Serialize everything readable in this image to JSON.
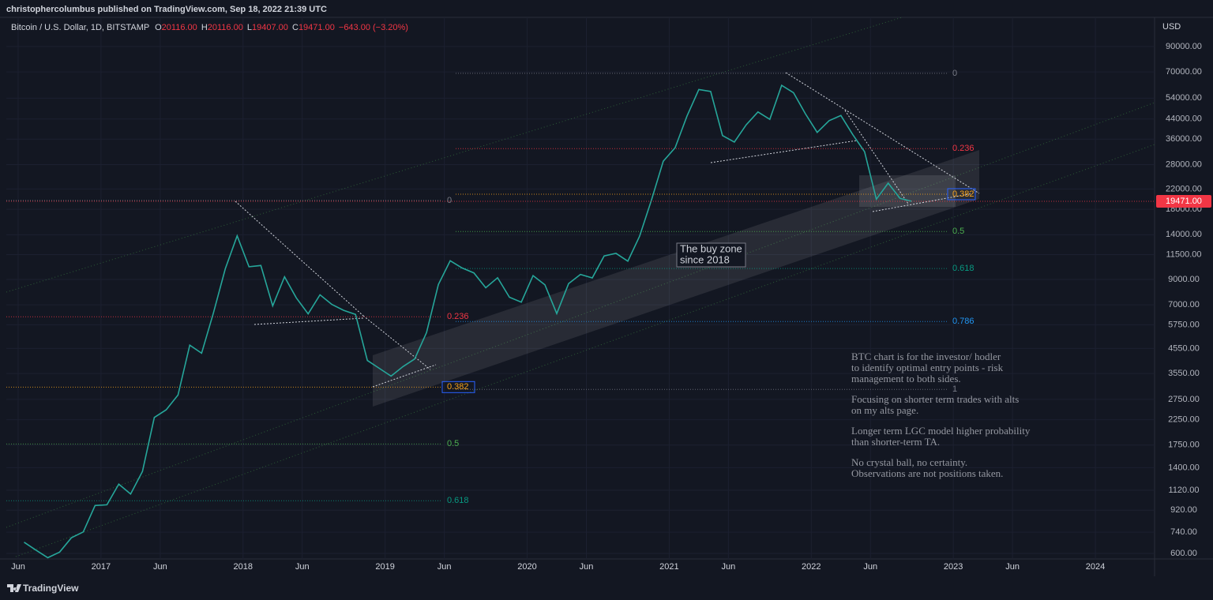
{
  "chart_data": {
    "type": "line",
    "published": "christophercolumbus published on TradingView.com, Sep 18, 2022 21:39 UTC",
    "ohlc": [
      [
        "O",
        "20116.00"
      ],
      [
        "H",
        "20116.00"
      ],
      [
        "L",
        "19407.00"
      ],
      [
        "C",
        "19471.00"
      ]
    ],
    "change": "−643.00 (−3.20%)",
    "currency": "USD",
    "log_scale": true,
    "grid": true,
    "xlim": [
      "2016-05",
      "2024-06"
    ],
    "ylim": [
      568,
      120000
    ],
    "xticks": [
      {
        "value": "2016-06",
        "label": "Jun"
      },
      {
        "value": "2017-01",
        "label": "2017"
      },
      {
        "value": "2017-06",
        "label": "Jun"
      },
      {
        "value": "2018-01",
        "label": "2018"
      },
      {
        "value": "2018-06",
        "label": "Jun"
      },
      {
        "value": "2019-01",
        "label": "2019"
      },
      {
        "value": "2019-06",
        "label": "Jun"
      },
      {
        "value": "2020-01",
        "label": "2020"
      },
      {
        "value": "2020-06",
        "label": "Jun"
      },
      {
        "value": "2021-01",
        "label": "2021"
      },
      {
        "value": "2021-06",
        "label": "Jun"
      },
      {
        "value": "2022-01",
        "label": "2022"
      },
      {
        "value": "2022-06",
        "label": "Jun"
      },
      {
        "value": "2023-01",
        "label": "2023"
      },
      {
        "value": "2023-06",
        "label": "Jun"
      },
      {
        "value": "2024-01",
        "label": "2024"
      }
    ],
    "yticks": [
      {
        "value": 600,
        "label": "600.00"
      },
      {
        "value": 740,
        "label": "740.00"
      },
      {
        "value": 920,
        "label": "920.00"
      },
      {
        "value": 1120,
        "label": "1120.00"
      },
      {
        "value": 1400,
        "label": "1400.00"
      },
      {
        "value": 1750,
        "label": "1750.00"
      },
      {
        "value": 2250,
        "label": "2250.00"
      },
      {
        "value": 2750,
        "label": "2750.00"
      },
      {
        "value": 3550,
        "label": "3550.00"
      },
      {
        "value": 4550,
        "label": "4550.00"
      },
      {
        "value": 5750,
        "label": "5750.00"
      },
      {
        "value": 7000,
        "label": "7000.00"
      },
      {
        "value": 9000,
        "label": "9000.00"
      },
      {
        "value": 11500,
        "label": "11500.00"
      },
      {
        "value": 14000,
        "label": "14000.00"
      },
      {
        "value": 18000,
        "label": "18000.00"
      },
      {
        "value": 22000,
        "label": "22000.00"
      },
      {
        "value": 28000,
        "label": "28000.00"
      },
      {
        "value": 36000,
        "label": "36000.00"
      },
      {
        "value": 44000,
        "label": "44000.00"
      },
      {
        "value": 54000,
        "label": "54000.00"
      },
      {
        "value": 70000,
        "label": "70000.00"
      },
      {
        "value": 90000,
        "label": "90000.00"
      }
    ],
    "x": [
      "2016-06",
      "2016-07",
      "2016-08",
      "2016-09",
      "2016-10",
      "2016-11",
      "2016-12",
      "2017-01",
      "2017-02",
      "2017-03",
      "2017-04",
      "2017-05",
      "2017-06",
      "2017-07",
      "2017-08",
      "2017-09",
      "2017-10",
      "2017-11",
      "2017-12",
      "2018-01",
      "2018-02",
      "2018-03",
      "2018-04",
      "2018-05",
      "2018-06",
      "2018-07",
      "2018-08",
      "2018-09",
      "2018-10",
      "2018-11",
      "2018-12",
      "2019-01",
      "2019-02",
      "2019-03",
      "2019-04",
      "2019-05",
      "2019-06",
      "2019-07",
      "2019-08",
      "2019-09",
      "2019-10",
      "2019-11",
      "2019-12",
      "2020-01",
      "2020-02",
      "2020-03",
      "2020-04",
      "2020-05",
      "2020-06",
      "2020-07",
      "2020-08",
      "2020-09",
      "2020-10",
      "2020-11",
      "2020-12",
      "2021-01",
      "2021-02",
      "2021-03",
      "2021-04",
      "2021-05",
      "2021-06",
      "2021-07",
      "2021-08",
      "2021-09",
      "2021-10",
      "2021-11",
      "2021-12",
      "2022-01",
      "2022-02",
      "2022-03",
      "2022-04",
      "2022-05",
      "2022-06",
      "2022-07",
      "2022-08",
      "2022-09"
    ],
    "series": [
      {
        "name": "Bitcoin / U.S. Dollar, 1D, BITSTAMP",
        "color": "#26a69a",
        "values": [
          670,
          620,
          575,
          608,
          700,
          742,
          963,
          970,
          1190,
          1080,
          1350,
          2300,
          2480,
          2870,
          4700,
          4340,
          6470,
          10000,
          13850,
          10200,
          10330,
          6930,
          9240,
          7500,
          6400,
          7730,
          7030,
          6630,
          6370,
          4040,
          3740,
          3460,
          3800,
          4100,
          5320,
          8560,
          10820,
          10080,
          9600,
          8290,
          9150,
          7550,
          7190,
          9350,
          8540,
          6420,
          8630,
          9460,
          9140,
          11350,
          11650,
          10780,
          13800,
          19700,
          28950,
          33100,
          45200,
          58800,
          57700,
          37300,
          35000,
          41500,
          47100,
          43800,
          61300,
          57000,
          46300,
          38500,
          43200,
          45500,
          37700,
          31800,
          19900,
          23300,
          20050,
          19471
        ]
      }
    ],
    "last_price": {
      "value": 19471,
      "label": "19471.00",
      "color": "#f23645"
    },
    "fibs": [
      {
        "levels": [
          0,
          0.236,
          0.382,
          0.5,
          0.618
        ],
        "prices": [
          19650,
          6220,
          3105,
          1770,
          1010
        ],
        "colors": [
          "#787b86",
          "#f23645",
          "#f7a21b",
          "#4caf50",
          "#089981"
        ]
      },
      {
        "levels": [
          0,
          0.236,
          0.382,
          0.5,
          0.618,
          0.786,
          1
        ],
        "prices": [
          69000,
          32800,
          20900,
          14450,
          10020,
          5940,
          3035
        ],
        "colors": [
          "#787b86",
          "#f23645",
          "#f7a21b",
          "#4caf50",
          "#089981",
          "#2196f3",
          "#787b86"
        ]
      }
    ],
    "buy_zone": [
      "The buy zone",
      "since 2018"
    ],
    "notes": [
      [
        "BTC chart is for the investor/ hodler",
        "to identify optimal entry points - risk",
        "management to both sides."
      ],
      [
        "Focusing on shorter term trades with alts",
        "on my alts page."
      ],
      [
        "Longer term LGC model higher probability",
        "than shorter-term TA."
      ],
      [
        "No crystal ball, no certainty.",
        "Observations are not positions taken."
      ]
    ],
    "brand": "TradingView"
  }
}
